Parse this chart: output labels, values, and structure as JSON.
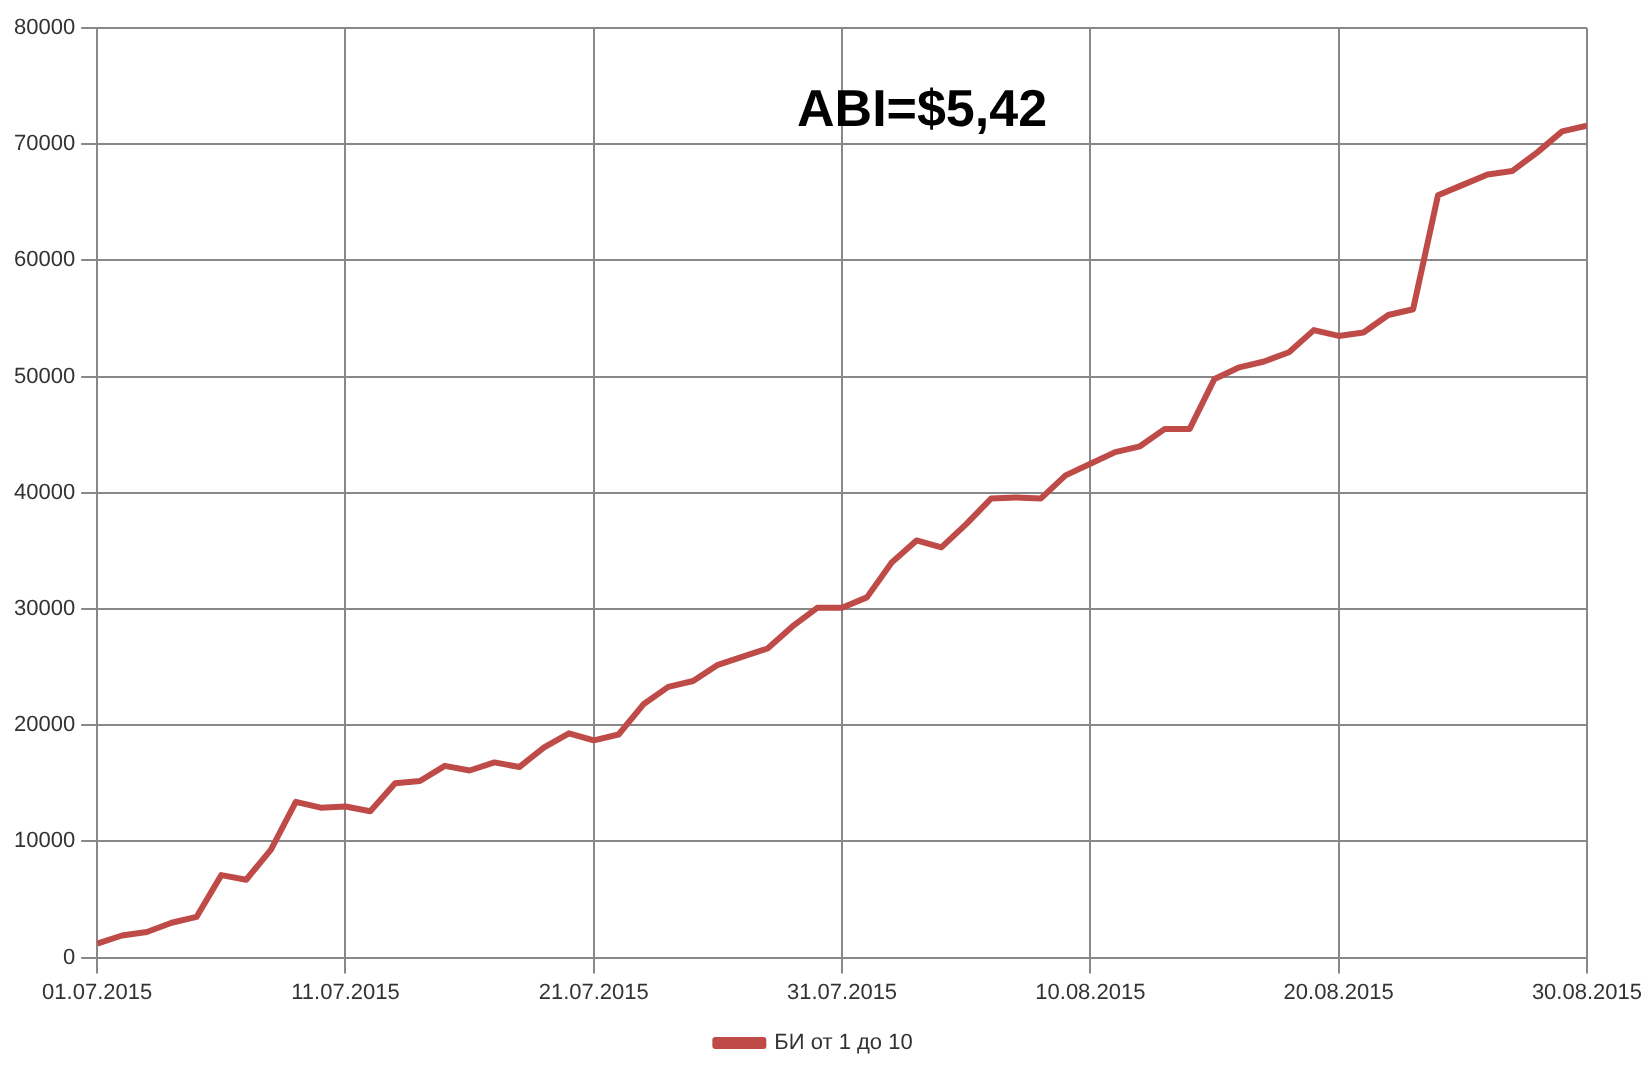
{
  "chart_data": {
    "type": "line",
    "title": "ABI=$5,42",
    "x": [
      "2015-07-01",
      "2015-07-02",
      "2015-07-03",
      "2015-07-04",
      "2015-07-05",
      "2015-07-06",
      "2015-07-07",
      "2015-07-08",
      "2015-07-09",
      "2015-07-10",
      "2015-07-11",
      "2015-07-12",
      "2015-07-13",
      "2015-07-14",
      "2015-07-15",
      "2015-07-16",
      "2015-07-17",
      "2015-07-18",
      "2015-07-19",
      "2015-07-20",
      "2015-07-21",
      "2015-07-22",
      "2015-07-23",
      "2015-07-24",
      "2015-07-25",
      "2015-07-26",
      "2015-07-27",
      "2015-07-28",
      "2015-07-29",
      "2015-07-30",
      "2015-07-31",
      "2015-08-01",
      "2015-08-02",
      "2015-08-03",
      "2015-08-04",
      "2015-08-05",
      "2015-08-06",
      "2015-08-07",
      "2015-08-08",
      "2015-08-09",
      "2015-08-10",
      "2015-08-11",
      "2015-08-12",
      "2015-08-13",
      "2015-08-14",
      "2015-08-15",
      "2015-08-16",
      "2015-08-17",
      "2015-08-18",
      "2015-08-19",
      "2015-08-20",
      "2015-08-21",
      "2015-08-22",
      "2015-08-23",
      "2015-08-24",
      "2015-08-25",
      "2015-08-26",
      "2015-08-27",
      "2015-08-28",
      "2015-08-29",
      "2015-08-30"
    ],
    "series": [
      {
        "name": "БИ от 1 до 10",
        "color": "#be4b48",
        "values": [
          1200,
          1900,
          2200,
          3000,
          3500,
          7100,
          6700,
          9300,
          13400,
          12900,
          13000,
          12600,
          15000,
          15200,
          16500,
          16100,
          16800,
          16400,
          18100,
          19300,
          18700,
          19200,
          21800,
          23300,
          23800,
          25200,
          25900,
          26600,
          28500,
          30100,
          30100,
          31000,
          34000,
          35900,
          35300,
          37300,
          39500,
          39600,
          39500,
          41500,
          42500,
          43500,
          44000,
          45500,
          45500,
          49800,
          50800,
          51300,
          52100,
          54000,
          53500,
          53800,
          55300,
          55800,
          65600,
          66500,
          67400,
          67700,
          69300,
          71100,
          71600
        ]
      }
    ],
    "xlim": [
      "2015-07-01",
      "2015-08-30"
    ],
    "xticks": [
      {
        "value": "2015-07-01",
        "label": "01.07.2015"
      },
      {
        "value": "2015-07-11",
        "label": "11.07.2015"
      },
      {
        "value": "2015-07-21",
        "label": "21.07.2015"
      },
      {
        "value": "2015-07-31",
        "label": "31.07.2015"
      },
      {
        "value": "2015-08-10",
        "label": "10.08.2015"
      },
      {
        "value": "2015-08-20",
        "label": "20.08.2015"
      },
      {
        "value": "2015-08-30",
        "label": "30.08.2015"
      }
    ],
    "ylim": [
      0,
      80000
    ],
    "yticks": [
      0,
      10000,
      20000,
      30000,
      40000,
      50000,
      60000,
      70000,
      80000
    ],
    "grid": true,
    "legend": "bottom",
    "marker": "none",
    "line_style": "solid"
  }
}
